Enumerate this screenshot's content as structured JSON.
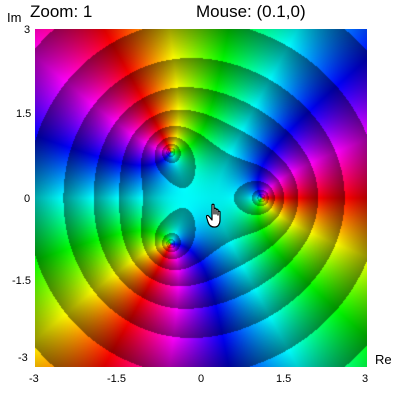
{
  "header": {
    "zoom_text": "Zoom: 1",
    "mouse_text": "Mouse: (0.1,0)"
  },
  "axes": {
    "y_title": "Im",
    "x_title": "Re",
    "x_ticks": [
      "-3",
      "-1.5",
      "0",
      "1.5",
      "3"
    ],
    "y_ticks": [
      "3",
      "1.5",
      "0",
      "-1.5",
      "-3"
    ],
    "x_range": [
      -3,
      3
    ],
    "y_range": [
      -3,
      3
    ]
  },
  "plot": {
    "type": "domain-coloring",
    "zoom": 1,
    "mouse": [
      0.1,
      0
    ],
    "singularities": [
      {
        "re": -0.55,
        "im": 0.82
      },
      {
        "re": -0.55,
        "im": -0.82
      },
      {
        "re": 1.1,
        "im": 0.0
      }
    ]
  },
  "icons": {
    "cursor": "hand-pointer-icon"
  }
}
